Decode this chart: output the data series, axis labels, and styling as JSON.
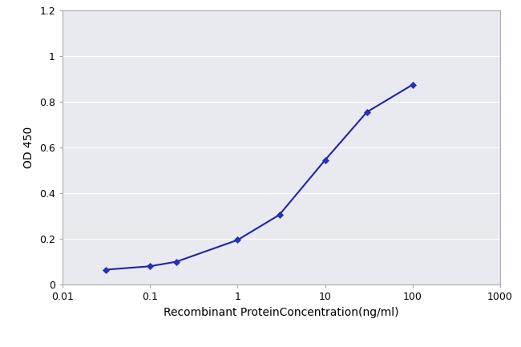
{
  "x": [
    0.031,
    0.1,
    0.2,
    1.0,
    3.0,
    10.0,
    30.0,
    100.0
  ],
  "y": [
    0.065,
    0.08,
    0.1,
    0.195,
    0.305,
    0.545,
    0.755,
    0.875
  ],
  "line_color": "#2222aa",
  "marker": "D",
  "marker_size": 4,
  "marker_facecolor": "#2233bb",
  "marker_edgecolor": "#2222aa",
  "xlabel": "Recombinant ProteinConcentration(ng/ml)",
  "ylabel": "OD 450",
  "xlim": [
    0.01,
    1000
  ],
  "ylim": [
    0,
    1.2
  ],
  "yticks": [
    0,
    0.2,
    0.4,
    0.6,
    0.8,
    1.0,
    1.2
  ],
  "xticks": [
    0.01,
    0.1,
    1,
    10,
    100,
    1000
  ],
  "xtick_labels": [
    "0.01",
    "0.1",
    "1",
    "10",
    "100",
    "1000"
  ],
  "plot_bg_color": "#e8eaf0",
  "fig_bg_color": "#ffffff",
  "grid_color": "#ffffff",
  "spine_color": "#aaaaaa",
  "xlabel_fontsize": 10,
  "ylabel_fontsize": 10,
  "tick_fontsize": 9,
  "line_width": 1.5
}
